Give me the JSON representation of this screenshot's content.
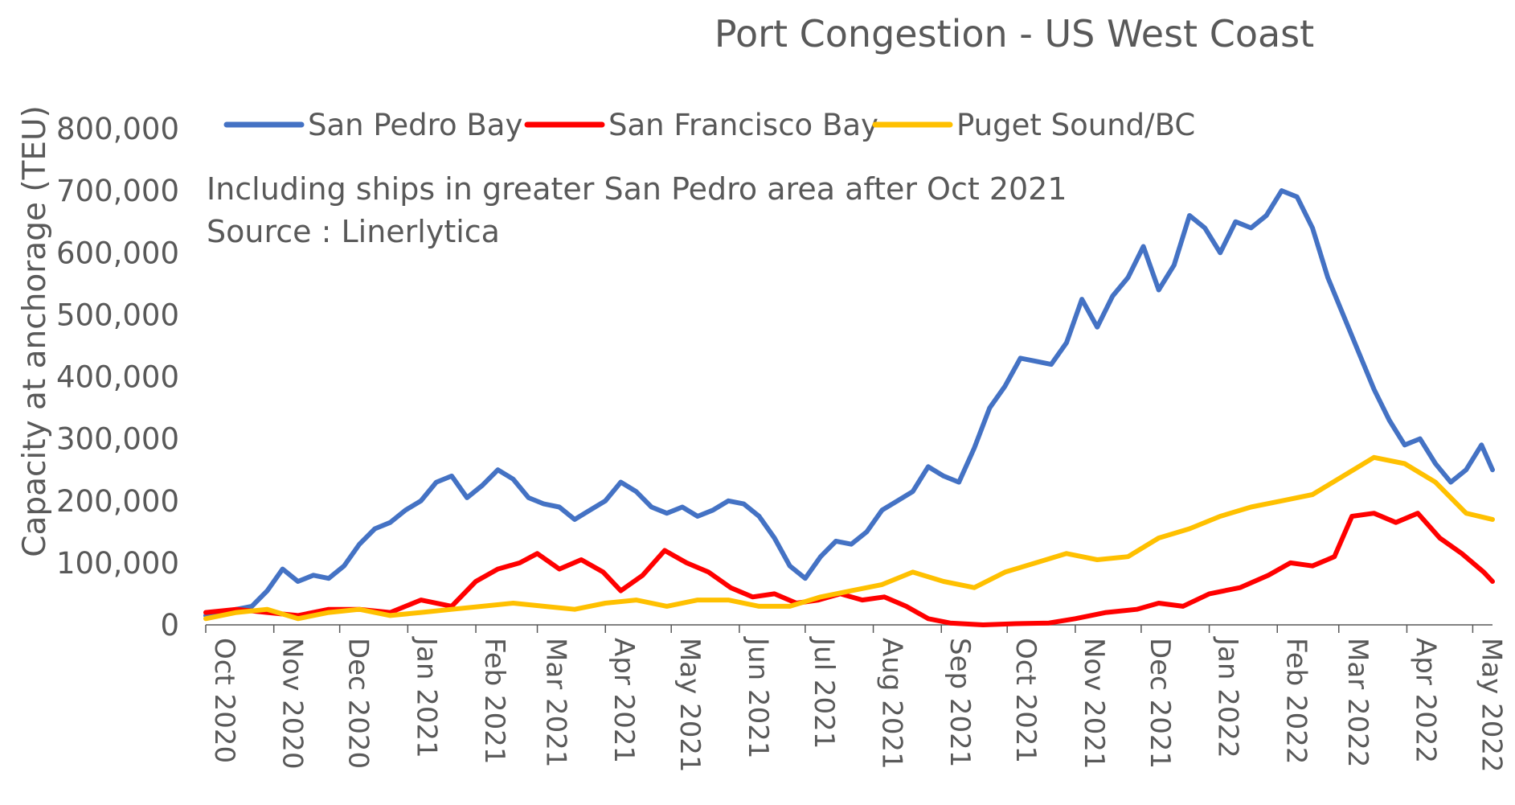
{
  "chart_data": {
    "type": "line",
    "title": "Port Congestion - US West Coast",
    "annotations": [
      "Including ships in greater San Pedro area after Oct 2021",
      "Source : Linerlytica"
    ],
    "xlabel": "",
    "ylabel": "Capacity at anchorage (TEU)",
    "ylim": [
      0,
      800000
    ],
    "y_ticks": [
      0,
      100000,
      200000,
      300000,
      400000,
      500000,
      600000,
      700000,
      800000
    ],
    "y_tick_labels": [
      "0",
      "100,000",
      "200,000",
      "300,000",
      "400,000",
      "500,000",
      "600,000",
      "700,000",
      "800,000"
    ],
    "x_range": [
      "2020-10-01",
      "2022-05-10"
    ],
    "x_tick_dates": [
      "2020-10-01",
      "2020-11-01",
      "2020-12-01",
      "2021-01-01",
      "2021-02-01",
      "2021-03-01",
      "2021-04-01",
      "2021-05-01",
      "2021-06-01",
      "2021-07-01",
      "2021-08-01",
      "2021-09-01",
      "2021-10-01",
      "2021-11-01",
      "2021-12-01",
      "2022-01-01",
      "2022-02-01",
      "2022-03-01",
      "2022-04-01",
      "2022-05-01"
    ],
    "x_tick_labels": [
      "Oct 2020",
      "Nov 2020",
      "Dec 2020",
      "Jan 2021",
      "Feb 2021",
      "Mar 2021",
      "Apr 2021",
      "May 2021",
      "Jun 2021",
      "Jul 2021",
      "Aug 2021",
      "Sep 2021",
      "Oct 2021",
      "Nov 2021",
      "Dec 2021",
      "Jan 2022",
      "Feb 2022",
      "Mar 2022",
      "Apr 2022",
      "May 2022"
    ],
    "grid": false,
    "legend_position": "top",
    "series": [
      {
        "name": "San Pedro Bay",
        "color": "#4472C4",
        "points": [
          [
            "2020-10-01",
            15000
          ],
          [
            "2020-10-08",
            20000
          ],
          [
            "2020-10-15",
            25000
          ],
          [
            "2020-10-22",
            30000
          ],
          [
            "2020-10-29",
            55000
          ],
          [
            "2020-11-05",
            90000
          ],
          [
            "2020-11-12",
            70000
          ],
          [
            "2020-11-19",
            80000
          ],
          [
            "2020-11-26",
            75000
          ],
          [
            "2020-12-03",
            95000
          ],
          [
            "2020-12-10",
            130000
          ],
          [
            "2020-12-17",
            155000
          ],
          [
            "2020-12-24",
            165000
          ],
          [
            "2020-12-31",
            185000
          ],
          [
            "2021-01-07",
            200000
          ],
          [
            "2021-01-14",
            230000
          ],
          [
            "2021-01-21",
            240000
          ],
          [
            "2021-01-28",
            205000
          ],
          [
            "2021-02-04",
            225000
          ],
          [
            "2021-02-11",
            250000
          ],
          [
            "2021-02-18",
            235000
          ],
          [
            "2021-02-25",
            205000
          ],
          [
            "2021-03-04",
            195000
          ],
          [
            "2021-03-11",
            190000
          ],
          [
            "2021-03-18",
            170000
          ],
          [
            "2021-03-25",
            185000
          ],
          [
            "2021-04-01",
            200000
          ],
          [
            "2021-04-08",
            230000
          ],
          [
            "2021-04-15",
            215000
          ],
          [
            "2021-04-22",
            190000
          ],
          [
            "2021-04-29",
            180000
          ],
          [
            "2021-05-06",
            190000
          ],
          [
            "2021-05-13",
            175000
          ],
          [
            "2021-05-20",
            185000
          ],
          [
            "2021-05-27",
            200000
          ],
          [
            "2021-06-03",
            195000
          ],
          [
            "2021-06-10",
            175000
          ],
          [
            "2021-06-17",
            140000
          ],
          [
            "2021-06-24",
            95000
          ],
          [
            "2021-07-01",
            75000
          ],
          [
            "2021-07-08",
            110000
          ],
          [
            "2021-07-15",
            135000
          ],
          [
            "2021-07-22",
            130000
          ],
          [
            "2021-07-29",
            150000
          ],
          [
            "2021-08-05",
            185000
          ],
          [
            "2021-08-12",
            200000
          ],
          [
            "2021-08-19",
            215000
          ],
          [
            "2021-08-26",
            255000
          ],
          [
            "2021-09-02",
            240000
          ],
          [
            "2021-09-09",
            230000
          ],
          [
            "2021-09-16",
            285000
          ],
          [
            "2021-09-23",
            350000
          ],
          [
            "2021-09-30",
            385000
          ],
          [
            "2021-10-07",
            430000
          ],
          [
            "2021-10-14",
            425000
          ],
          [
            "2021-10-21",
            420000
          ],
          [
            "2021-10-28",
            455000
          ],
          [
            "2021-11-04",
            525000
          ],
          [
            "2021-11-11",
            480000
          ],
          [
            "2021-11-18",
            530000
          ],
          [
            "2021-11-25",
            560000
          ],
          [
            "2021-12-02",
            610000
          ],
          [
            "2021-12-09",
            540000
          ],
          [
            "2021-12-16",
            580000
          ],
          [
            "2021-12-23",
            660000
          ],
          [
            "2021-12-30",
            640000
          ],
          [
            "2022-01-06",
            600000
          ],
          [
            "2022-01-13",
            650000
          ],
          [
            "2022-01-20",
            640000
          ],
          [
            "2022-01-27",
            660000
          ],
          [
            "2022-02-03",
            700000
          ],
          [
            "2022-02-10",
            690000
          ],
          [
            "2022-02-17",
            640000
          ],
          [
            "2022-02-24",
            560000
          ],
          [
            "2022-03-03",
            500000
          ],
          [
            "2022-03-10",
            440000
          ],
          [
            "2022-03-17",
            380000
          ],
          [
            "2022-03-24",
            330000
          ],
          [
            "2022-03-31",
            290000
          ],
          [
            "2022-04-07",
            300000
          ],
          [
            "2022-04-14",
            260000
          ],
          [
            "2022-04-21",
            230000
          ],
          [
            "2022-04-28",
            250000
          ],
          [
            "2022-05-05",
            290000
          ],
          [
            "2022-05-10",
            250000
          ]
        ]
      },
      {
        "name": "San Francisco Bay",
        "color": "#FF0000",
        "points": [
          [
            "2020-10-01",
            20000
          ],
          [
            "2020-10-15",
            25000
          ],
          [
            "2020-10-29",
            20000
          ],
          [
            "2020-11-12",
            15000
          ],
          [
            "2020-11-26",
            25000
          ],
          [
            "2020-12-10",
            25000
          ],
          [
            "2020-12-24",
            20000
          ],
          [
            "2021-01-07",
            40000
          ],
          [
            "2021-01-21",
            30000
          ],
          [
            "2021-02-01",
            70000
          ],
          [
            "2021-02-11",
            90000
          ],
          [
            "2021-02-21",
            100000
          ],
          [
            "2021-03-01",
            115000
          ],
          [
            "2021-03-11",
            90000
          ],
          [
            "2021-03-21",
            105000
          ],
          [
            "2021-03-31",
            85000
          ],
          [
            "2021-04-08",
            55000
          ],
          [
            "2021-04-18",
            80000
          ],
          [
            "2021-04-28",
            120000
          ],
          [
            "2021-05-08",
            100000
          ],
          [
            "2021-05-18",
            85000
          ],
          [
            "2021-05-28",
            60000
          ],
          [
            "2021-06-07",
            45000
          ],
          [
            "2021-06-17",
            50000
          ],
          [
            "2021-06-27",
            35000
          ],
          [
            "2021-07-07",
            40000
          ],
          [
            "2021-07-17",
            50000
          ],
          [
            "2021-07-27",
            40000
          ],
          [
            "2021-08-06",
            45000
          ],
          [
            "2021-08-16",
            30000
          ],
          [
            "2021-08-26",
            10000
          ],
          [
            "2021-09-05",
            3000
          ],
          [
            "2021-09-20",
            0
          ],
          [
            "2021-10-05",
            2000
          ],
          [
            "2021-10-20",
            3000
          ],
          [
            "2021-11-01",
            10000
          ],
          [
            "2021-11-15",
            20000
          ],
          [
            "2021-11-29",
            25000
          ],
          [
            "2021-12-09",
            35000
          ],
          [
            "2021-12-20",
            30000
          ],
          [
            "2022-01-01",
            50000
          ],
          [
            "2022-01-15",
            60000
          ],
          [
            "2022-01-28",
            80000
          ],
          [
            "2022-02-07",
            100000
          ],
          [
            "2022-02-17",
            95000
          ],
          [
            "2022-02-27",
            110000
          ],
          [
            "2022-03-07",
            175000
          ],
          [
            "2022-03-17",
            180000
          ],
          [
            "2022-03-27",
            165000
          ],
          [
            "2022-04-06",
            180000
          ],
          [
            "2022-04-16",
            140000
          ],
          [
            "2022-04-26",
            115000
          ],
          [
            "2022-05-06",
            85000
          ],
          [
            "2022-05-10",
            70000
          ]
        ]
      },
      {
        "name": "Puget Sound/BC",
        "color": "#FFC000",
        "points": [
          [
            "2020-10-01",
            10000
          ],
          [
            "2020-10-15",
            20000
          ],
          [
            "2020-10-29",
            25000
          ],
          [
            "2020-11-12",
            10000
          ],
          [
            "2020-11-26",
            20000
          ],
          [
            "2020-12-10",
            25000
          ],
          [
            "2020-12-24",
            15000
          ],
          [
            "2021-01-07",
            20000
          ],
          [
            "2021-01-21",
            25000
          ],
          [
            "2021-02-04",
            30000
          ],
          [
            "2021-02-18",
            35000
          ],
          [
            "2021-03-04",
            30000
          ],
          [
            "2021-03-18",
            25000
          ],
          [
            "2021-04-01",
            35000
          ],
          [
            "2021-04-15",
            40000
          ],
          [
            "2021-04-29",
            30000
          ],
          [
            "2021-05-13",
            40000
          ],
          [
            "2021-05-27",
            40000
          ],
          [
            "2021-06-10",
            30000
          ],
          [
            "2021-06-24",
            30000
          ],
          [
            "2021-07-08",
            45000
          ],
          [
            "2021-07-22",
            55000
          ],
          [
            "2021-08-05",
            65000
          ],
          [
            "2021-08-19",
            85000
          ],
          [
            "2021-09-02",
            70000
          ],
          [
            "2021-09-16",
            60000
          ],
          [
            "2021-09-30",
            85000
          ],
          [
            "2021-10-14",
            100000
          ],
          [
            "2021-10-28",
            115000
          ],
          [
            "2021-11-11",
            105000
          ],
          [
            "2021-11-25",
            110000
          ],
          [
            "2021-12-09",
            140000
          ],
          [
            "2021-12-23",
            155000
          ],
          [
            "2022-01-06",
            175000
          ],
          [
            "2022-01-20",
            190000
          ],
          [
            "2022-02-03",
            200000
          ],
          [
            "2022-02-17",
            210000
          ],
          [
            "2022-03-03",
            240000
          ],
          [
            "2022-03-17",
            270000
          ],
          [
            "2022-03-31",
            260000
          ],
          [
            "2022-04-14",
            230000
          ],
          [
            "2022-04-28",
            180000
          ],
          [
            "2022-05-10",
            170000
          ]
        ]
      }
    ]
  }
}
